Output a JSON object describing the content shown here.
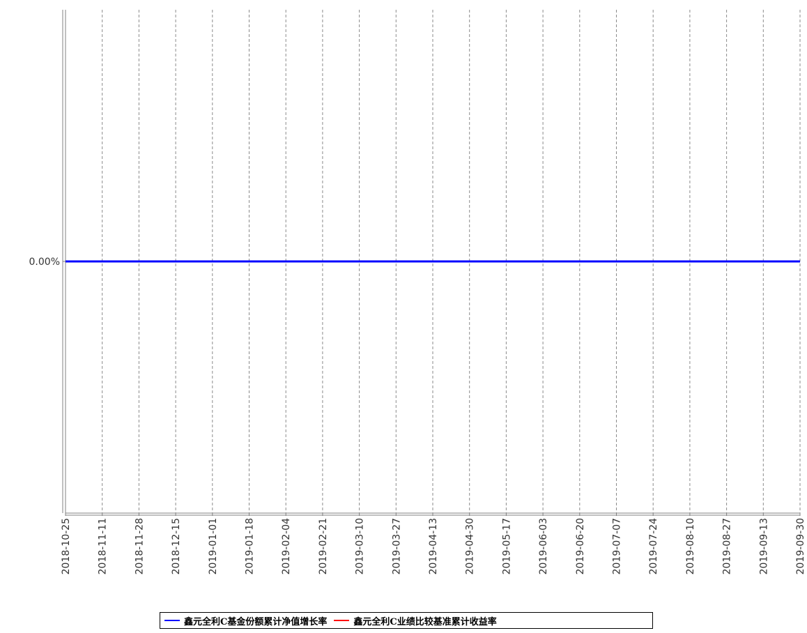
{
  "chart_data": {
    "type": "line",
    "title": "",
    "xlabel": "",
    "ylabel": "",
    "x_ticks": [
      "2018-10-25",
      "2018-11-11",
      "2018-11-28",
      "2018-12-15",
      "2019-01-01",
      "2019-01-18",
      "2019-02-04",
      "2019-02-21",
      "2019-03-10",
      "2019-03-27",
      "2019-04-13",
      "2019-04-30",
      "2019-05-17",
      "2019-06-03",
      "2019-06-20",
      "2019-07-07",
      "2019-07-24",
      "2019-08-10",
      "2019-08-27",
      "2019-09-13",
      "2019-09-30"
    ],
    "xlim": [
      "2018-10-25",
      "2019-09-30"
    ],
    "y_ticks": [
      {
        "value": 0,
        "label": "0.00%"
      }
    ],
    "ylim": [
      -0.01,
      0.01
    ],
    "grid": {
      "x": true,
      "y": false
    },
    "legend_position": "bottom",
    "series": [
      {
        "name": "鑫元全利C基金份额累计净值增长率",
        "color": "#0000ff",
        "x": [
          "2018-10-25",
          "2019-09-30"
        ],
        "values": [
          0,
          0
        ]
      },
      {
        "name": "鑫元全利C业绩比较基准累计收益率",
        "color": "#ff0000",
        "x": [
          "2018-10-25",
          "2019-09-30"
        ],
        "values": [
          0,
          0
        ]
      }
    ]
  }
}
